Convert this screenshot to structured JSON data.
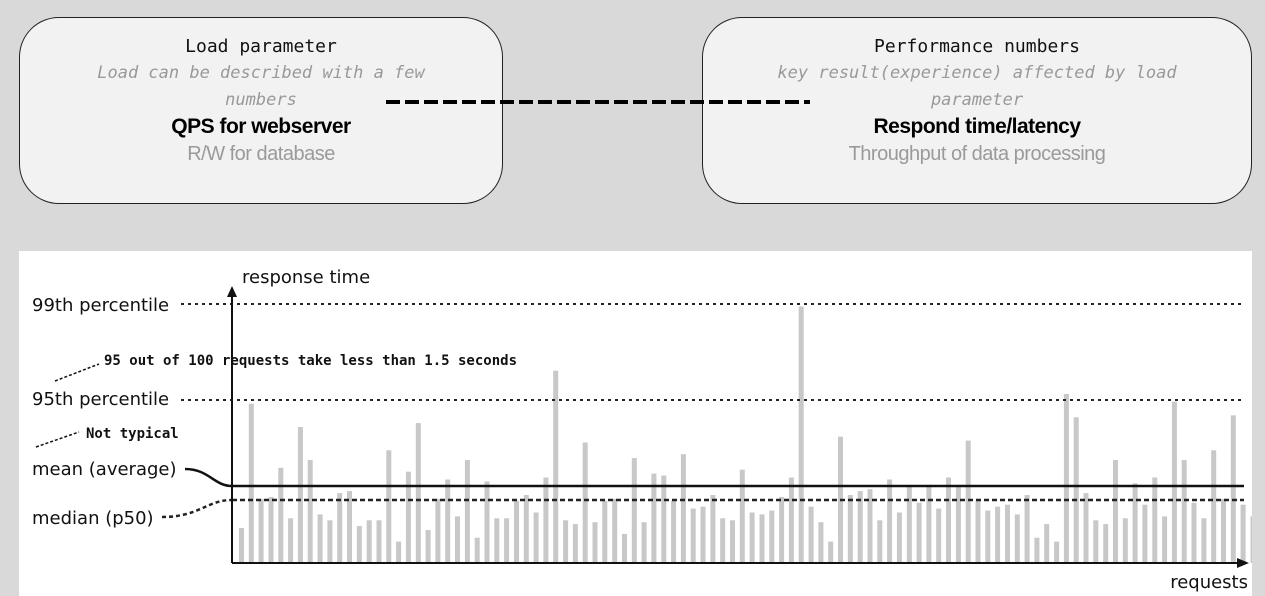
{
  "left_box": {
    "title": "Load parameter",
    "description": "Load can be described with a few numbers",
    "primary": "QPS for webserver",
    "secondary": "R/W for database"
  },
  "right_box": {
    "title": "Performance numbers",
    "description": "key result(experience) affected by load parameter",
    "primary": "Respond time/latency",
    "secondary": "Throughput of data processing"
  },
  "chart_data": {
    "type": "bar",
    "xlabel": "requests",
    "ylabel": "response time",
    "reference_lines": [
      {
        "label": "99th percentile",
        "value": 260,
        "style": "dotted"
      },
      {
        "label": "95th percentile",
        "value": 164,
        "style": "dotted"
      },
      {
        "label": "mean (average)",
        "value": 78,
        "style": "solid"
      },
      {
        "label": "median (p50)",
        "value": 64,
        "style": "dotted"
      }
    ],
    "annotations": [
      {
        "text": "95 out of 100 requests take less than 1.5 seconds"
      },
      {
        "text": "Not typical"
      }
    ],
    "values": [
      36,
      164,
      66,
      68,
      98,
      46,
      140,
      106,
      50,
      44,
      72,
      74,
      38,
      44,
      44,
      116,
      22,
      94,
      144,
      34,
      66,
      86,
      48,
      106,
      26,
      84,
      46,
      46,
      64,
      70,
      52,
      88,
      198,
      44,
      40,
      124,
      42,
      64,
      66,
      30,
      108,
      42,
      92,
      90,
      64,
      112,
      56,
      58,
      70,
      46,
      44,
      96,
      52,
      50,
      54,
      68,
      88,
      264,
      58,
      42,
      22,
      130,
      70,
      74,
      76,
      44,
      86,
      52,
      80,
      62,
      80,
      56,
      88,
      80,
      126,
      64,
      54,
      58,
      60,
      50,
      70,
      26,
      40,
      22,
      174,
      150,
      72,
      44,
      40,
      106,
      46,
      82,
      60,
      88,
      48,
      166,
      106,
      62,
      46,
      116,
      66,
      152,
      60,
      48,
      32,
      56,
      48,
      172,
      86,
      42,
      56,
      60,
      192,
      164,
      46
    ],
    "ylim": [
      0,
      280
    ]
  }
}
